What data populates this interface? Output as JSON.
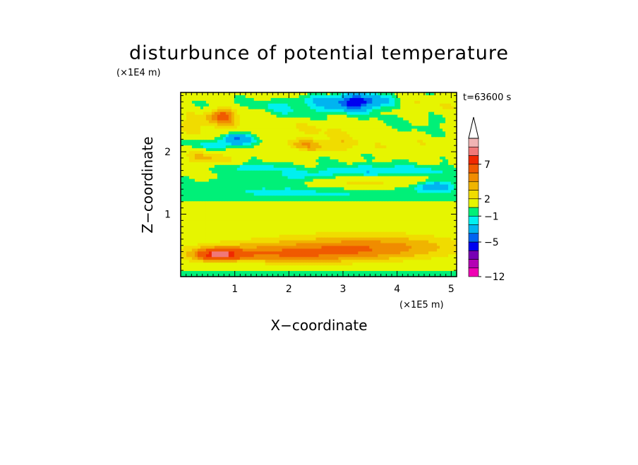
{
  "chart_data": {
    "type": "heatmap",
    "title": "disturbunce of potential temperature",
    "xlabel": "X−coordinate",
    "ylabel": "Z−coordinate",
    "x_unit": "(×1E5 m)",
    "y_unit": "(×1E4 m)",
    "time_label": "t=63600 s",
    "xlim": [
      0,
      5.1
    ],
    "ylim": [
      0,
      2.95
    ],
    "x_ticks": [
      {
        "value": 1,
        "label": "1"
      },
      {
        "value": 2,
        "label": "2"
      },
      {
        "value": 3,
        "label": "3"
      },
      {
        "value": 4,
        "label": "4"
      },
      {
        "value": 5,
        "label": "5"
      }
    ],
    "y_ticks": [
      {
        "value": 1,
        "label": "1"
      },
      {
        "value": 2,
        "label": "2"
      }
    ],
    "colorbar": {
      "levels": [
        -12,
        -10,
        -8,
        -7,
        -5,
        -4,
        -2,
        -1,
        0,
        2,
        3,
        4,
        5,
        7,
        8,
        9
      ],
      "colors": [
        "#f000b4",
        "#b400b4",
        "#7800b4",
        "#0000f0",
        "#0064f0",
        "#00b4f0",
        "#00f0f0",
        "#00f078",
        "#e6f500",
        "#f0dc00",
        "#f0b400",
        "#f08c00",
        "#f05a00",
        "#f02800",
        "#f07878",
        "#f0b4b4"
      ],
      "extend_top_color": "#ffffff",
      "labels": [
        {
          "value": -12,
          "label": "−12"
        },
        {
          "value": -5,
          "label": "−5"
        },
        {
          "value": -1,
          "label": "−1"
        },
        {
          "value": 2,
          "label": "2"
        },
        {
          "value": 7,
          "label": "7"
        }
      ]
    },
    "background_value": 0.2,
    "features": [
      {
        "x": 1.6,
        "z": 0.35,
        "wx": 1.8,
        "wz": 0.18,
        "amp": 3.8
      },
      {
        "x": 0.7,
        "z": 0.35,
        "wx": 0.4,
        "wz": 0.1,
        "amp": 5.4
      },
      {
        "x": 3.7,
        "z": 0.45,
        "wx": 1.7,
        "wz": 0.22,
        "amp": 3.2
      },
      {
        "x": 2.6,
        "z": 0.6,
        "wx": 3.2,
        "wz": 0.25,
        "amp": 1.2
      },
      {
        "x": 2.5,
        "z": 0.05,
        "wx": 3.5,
        "wz": 0.06,
        "amp": -1.4
      },
      {
        "x": 1.1,
        "z": 0.22,
        "wx": 0.5,
        "wz": 0.04,
        "amp": -1.2
      },
      {
        "x": 2.6,
        "z": 1.0,
        "wx": 3.0,
        "wz": 0.2,
        "amp": 1.0
      },
      {
        "x": 2.5,
        "z": 1.35,
        "wx": 3.2,
        "wz": 0.15,
        "amp": -1.5
      },
      {
        "x": 3.3,
        "z": 1.5,
        "wx": 1.0,
        "wz": 0.1,
        "amp": 2.8
      },
      {
        "x": 2.2,
        "z": 1.6,
        "wx": 1.0,
        "wz": 0.12,
        "amp": -1.4
      },
      {
        "x": 3.8,
        "z": 1.7,
        "wx": 1.2,
        "wz": 0.1,
        "amp": -2.0
      },
      {
        "x": 4.7,
        "z": 1.45,
        "wx": 0.3,
        "wz": 0.08,
        "amp": -3.5
      },
      {
        "x": 0.5,
        "z": 1.9,
        "wx": 0.6,
        "wz": 0.15,
        "amp": 2.8
      },
      {
        "x": 1.2,
        "z": 1.75,
        "wx": 0.6,
        "wz": 0.06,
        "amp": -2.3
      },
      {
        "x": 2.5,
        "z": 2.1,
        "wx": 1.0,
        "wz": 0.12,
        "amp": 3.0
      },
      {
        "x": 0.6,
        "z": 2.1,
        "wx": 0.6,
        "wz": 0.1,
        "amp": -1.8
      },
      {
        "x": 1.0,
        "z": 2.2,
        "wx": 0.25,
        "wz": 0.1,
        "amp": -4.5
      },
      {
        "x": 0.5,
        "z": 2.45,
        "wx": 1.0,
        "wz": 0.2,
        "amp": 2.4
      },
      {
        "x": 0.8,
        "z": 2.6,
        "wx": 0.3,
        "wz": 0.12,
        "amp": 4.2
      },
      {
        "x": 1.5,
        "z": 2.3,
        "wx": 0.5,
        "wz": 0.25,
        "amp": -1.3
      },
      {
        "x": 2.7,
        "z": 2.35,
        "wx": 1.2,
        "wz": 0.18,
        "amp": 2.0
      },
      {
        "x": 4.0,
        "z": 2.4,
        "wx": 1.2,
        "wz": 0.25,
        "amp": -0.8
      },
      {
        "x": 3.3,
        "z": 2.8,
        "wx": 0.55,
        "wz": 0.13,
        "amp": -5.5
      },
      {
        "x": 2.4,
        "z": 2.75,
        "wx": 1.5,
        "wz": 0.2,
        "amp": -1.4
      },
      {
        "x": 4.5,
        "z": 2.75,
        "wx": 1.0,
        "wz": 0.18,
        "amp": 1.8
      },
      {
        "x": 4.6,
        "z": 2.1,
        "wx": 0.9,
        "wz": 0.18,
        "amp": 1.4
      },
      {
        "x": 1.5,
        "z": 2.95,
        "wx": 1.2,
        "wz": 0.12,
        "amp": 1.3
      }
    ]
  }
}
